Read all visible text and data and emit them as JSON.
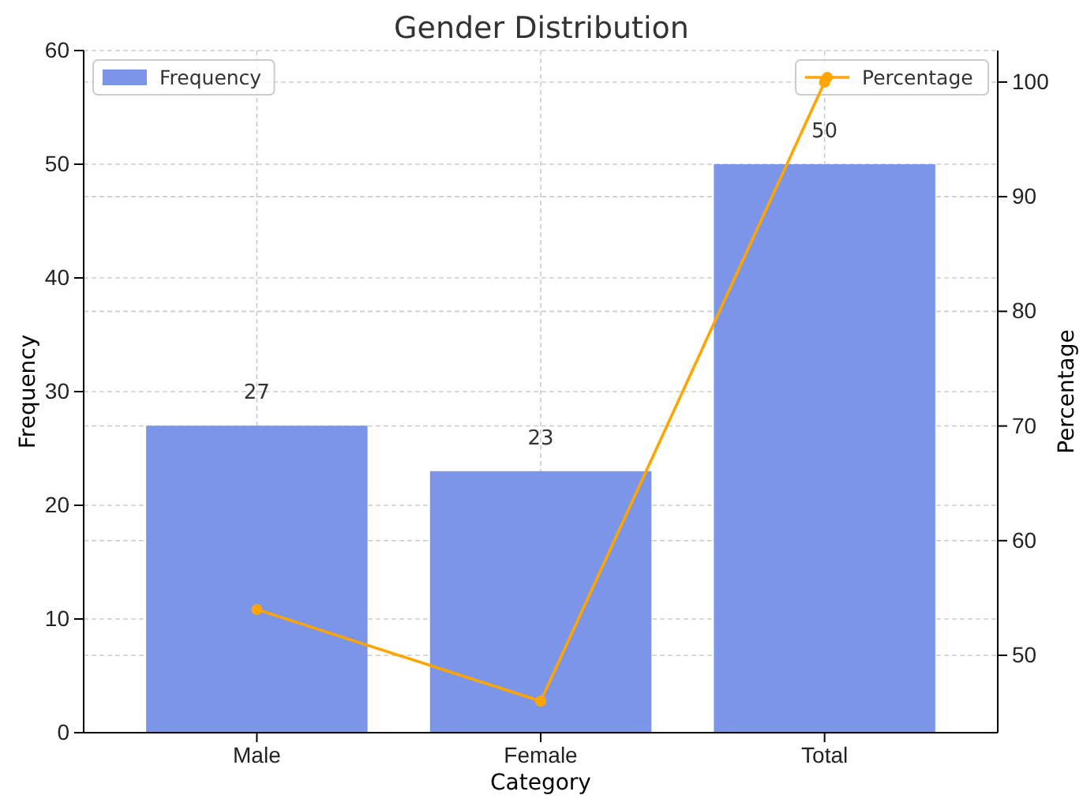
{
  "chart_data": {
    "type": "bar",
    "title": "Gender Distribution",
    "xlabel": "Category",
    "ylabel": "Frequency",
    "y2label": "Percentage",
    "categories": [
      "Male",
      "Female",
      "Total"
    ],
    "series": [
      {
        "name": "Frequency",
        "color": "#7b96e8",
        "values": [
          27,
          23,
          50
        ],
        "value_labels": [
          "27",
          "23",
          "50"
        ]
      },
      {
        "name": "Percentage",
        "type": "line",
        "axis": "y2",
        "color": "#ffa500",
        "values": [
          54,
          46,
          100
        ],
        "marker": "circle"
      }
    ],
    "ylim": [
      0,
      60
    ],
    "yticks": [
      0,
      10,
      20,
      30,
      40,
      50,
      60
    ],
    "y2lim": [
      43.25,
      102.75
    ],
    "y2ticks": [
      50,
      60,
      70,
      80,
      90,
      100
    ],
    "grid": true,
    "legend": "top"
  }
}
